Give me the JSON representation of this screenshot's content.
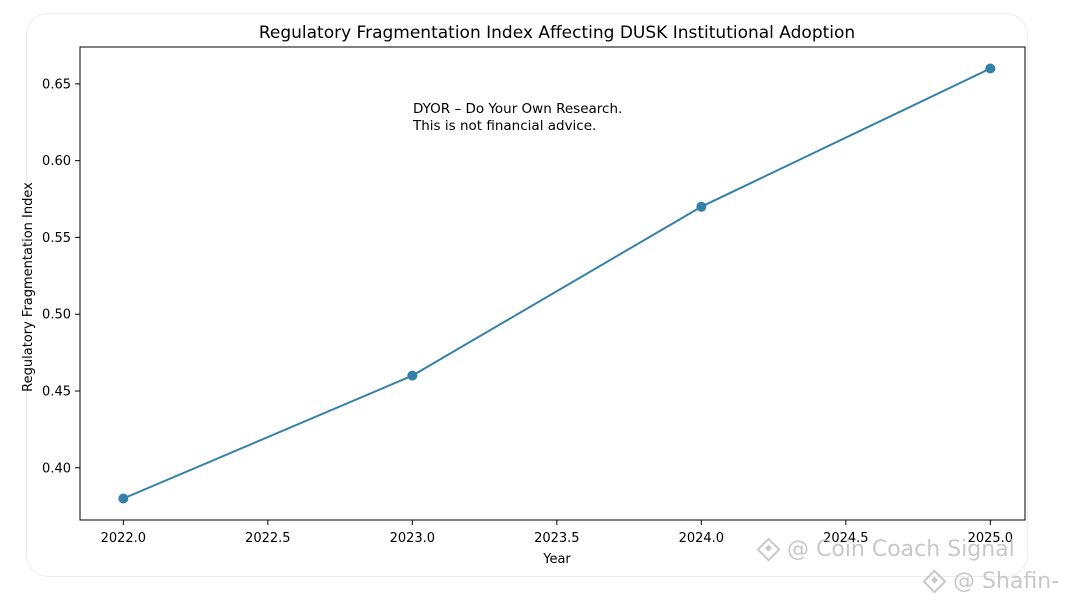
{
  "chart_data": {
    "type": "line",
    "title": "Regulatory Fragmentation Index Affecting DUSK Institutional Adoption",
    "xlabel": "Year",
    "ylabel": "Regulatory Fragmentation Index",
    "x": [
      2022.0,
      2023.0,
      2024.0,
      2025.0
    ],
    "series": [
      {
        "name": "Regulatory Fragmentation Index",
        "values": [
          0.38,
          0.46,
          0.57,
          0.66
        ]
      }
    ],
    "xlim": [
      2021.85,
      2025.12
    ],
    "ylim": [
      0.366,
      0.674
    ],
    "xticks": [
      "2022.0",
      "2022.5",
      "2023.0",
      "2023.5",
      "2024.0",
      "2024.5",
      "2025.0"
    ],
    "yticks": [
      "0.40",
      "0.45",
      "0.50",
      "0.55",
      "0.60",
      "0.65"
    ],
    "annotation": [
      "DYOR – Do Your Own Research.",
      "This is not financial advice."
    ],
    "line_color": "#3580a8",
    "grid": false
  },
  "watermarks": {
    "primary": "@ Coin Coach Signal",
    "secondary": "@ Shafin-"
  }
}
